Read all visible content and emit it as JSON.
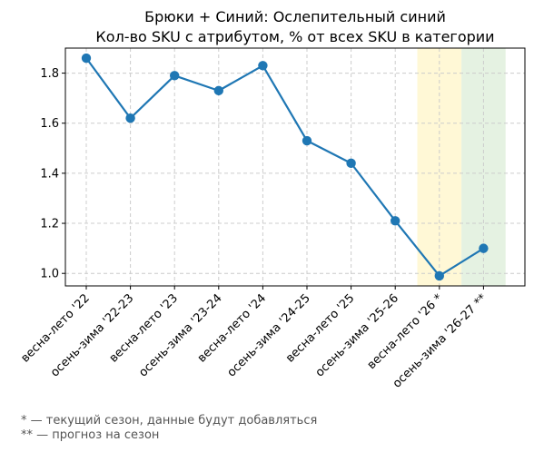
{
  "chart_data": {
    "type": "line",
    "title": "Брюки + Синий: Ослепительный синий",
    "subtitle": "Кол-во SKU с атрибутом, % от всех SKU в категории",
    "xlabel": "",
    "ylabel": "",
    "categories": [
      "весна-лето '22",
      "осень-зима '22-23",
      "весна-лето '23",
      "осень-зима '23-24",
      "весна-лето '24",
      "осень-зима '24-25",
      "весна-лето '25",
      "осень-зима '25-26",
      "весна-лето '26 *",
      "осень-зима '26-27 **"
    ],
    "series": [
      {
        "values": [
          1.86,
          1.62,
          1.79,
          1.73,
          1.83,
          1.53,
          1.44,
          1.21,
          0.99,
          1.1
        ]
      }
    ],
    "ylim": [
      0.95,
      1.9
    ],
    "yticks": [
      1.0,
      1.2,
      1.4,
      1.6,
      1.8
    ],
    "ytick_labels": [
      "1.0",
      "1.2",
      "1.4",
      "1.6",
      "1.8"
    ],
    "grid": true,
    "line_color": "#1f77b4",
    "highlight_current": {
      "category": "весна-лето '26 *",
      "color": "#fff8d6"
    },
    "highlight_forecast": {
      "category": "осень-зима '26-27 **",
      "color": "#e5f2e2"
    }
  },
  "footnotes": {
    "current": "* — текущий сезон, данные будут добавляться",
    "forecast": "** — прогноз на сезон"
  }
}
